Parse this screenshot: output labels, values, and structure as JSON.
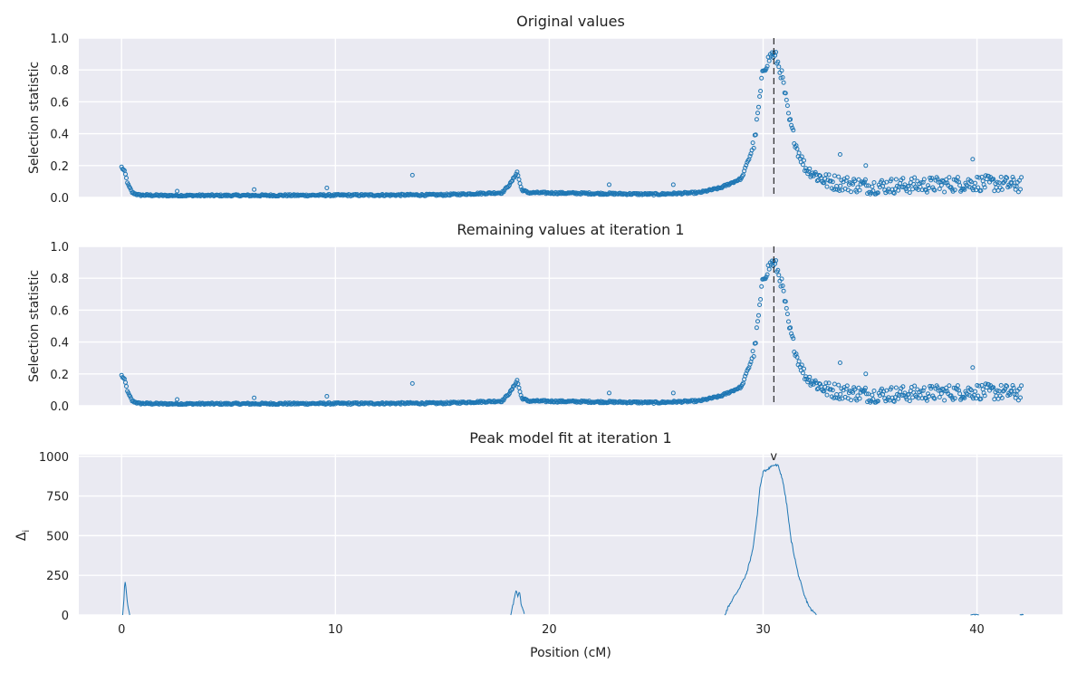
{
  "chart_data": [
    {
      "type": "scatter",
      "title": "Original values",
      "xlabel": "",
      "ylabel": "Selection statistic",
      "xlim": [
        -2,
        44
      ],
      "ylim": [
        0,
        1.0
      ],
      "yticks": [
        "0.0",
        "0.2",
        "0.4",
        "0.6",
        "0.8",
        "1.0"
      ],
      "ytick_values": [
        0,
        0.2,
        0.4,
        0.6,
        0.8,
        1.0
      ],
      "xtick_values": [
        0,
        10,
        20,
        30,
        40
      ],
      "marker_line_x": 30.5,
      "marker_line_style": "dashed",
      "color": "#1f77b4",
      "grid": true,
      "profile": [
        [
          0.0,
          0.19
        ],
        [
          0.15,
          0.16
        ],
        [
          0.3,
          0.08
        ],
        [
          0.5,
          0.03
        ],
        [
          0.8,
          0.015
        ],
        [
          2,
          0.012
        ],
        [
          5,
          0.012
        ],
        [
          10,
          0.014
        ],
        [
          15,
          0.016
        ],
        [
          17.8,
          0.03
        ],
        [
          18.2,
          0.09
        ],
        [
          18.5,
          0.16
        ],
        [
          18.7,
          0.05
        ],
        [
          19,
          0.03
        ],
        [
          22,
          0.025
        ],
        [
          25,
          0.02
        ],
        [
          27,
          0.03
        ],
        [
          28,
          0.06
        ],
        [
          29,
          0.12
        ],
        [
          29.6,
          0.35
        ],
        [
          30.0,
          0.8
        ],
        [
          30.4,
          0.9
        ],
        [
          30.6,
          0.88
        ],
        [
          30.9,
          0.75
        ],
        [
          31.2,
          0.5
        ],
        [
          31.6,
          0.3
        ],
        [
          32,
          0.18
        ],
        [
          33,
          0.1
        ],
        [
          35,
          0.07
        ],
        [
          38,
          0.08
        ],
        [
          40,
          0.09
        ],
        [
          42,
          0.08
        ]
      ],
      "outliers": [
        [
          2.6,
          0.04
        ],
        [
          6.2,
          0.05
        ],
        [
          9.6,
          0.06
        ],
        [
          13.6,
          0.14
        ],
        [
          22.8,
          0.08
        ],
        [
          25.8,
          0.08
        ],
        [
          33.6,
          0.27
        ],
        [
          34.8,
          0.2
        ],
        [
          39.8,
          0.24
        ]
      ]
    },
    {
      "type": "scatter",
      "title": "Remaining values at iteration 1",
      "xlabel": "",
      "ylabel": "Selection statistic",
      "xlim": [
        -2,
        44
      ],
      "ylim": [
        0,
        1.0
      ],
      "yticks": [
        "0.0",
        "0.2",
        "0.4",
        "0.6",
        "0.8",
        "1.0"
      ],
      "ytick_values": [
        0,
        0.2,
        0.4,
        0.6,
        0.8,
        1.0
      ],
      "xtick_values": [
        0,
        10,
        20,
        30,
        40
      ],
      "marker_line_x": 30.5,
      "marker_line_style": "dashed",
      "color": "#1f77b4",
      "grid": true,
      "profile": [
        [
          0.0,
          0.19
        ],
        [
          0.15,
          0.16
        ],
        [
          0.3,
          0.08
        ],
        [
          0.5,
          0.03
        ],
        [
          0.8,
          0.015
        ],
        [
          2,
          0.012
        ],
        [
          5,
          0.012
        ],
        [
          10,
          0.014
        ],
        [
          15,
          0.016
        ],
        [
          17.8,
          0.03
        ],
        [
          18.2,
          0.09
        ],
        [
          18.5,
          0.16
        ],
        [
          18.7,
          0.05
        ],
        [
          19,
          0.03
        ],
        [
          22,
          0.025
        ],
        [
          25,
          0.02
        ],
        [
          27,
          0.03
        ],
        [
          28,
          0.06
        ],
        [
          29,
          0.12
        ],
        [
          29.6,
          0.35
        ],
        [
          30.0,
          0.8
        ],
        [
          30.4,
          0.9
        ],
        [
          30.6,
          0.88
        ],
        [
          30.9,
          0.75
        ],
        [
          31.2,
          0.5
        ],
        [
          31.6,
          0.3
        ],
        [
          32,
          0.18
        ],
        [
          33,
          0.1
        ],
        [
          35,
          0.07
        ],
        [
          38,
          0.08
        ],
        [
          40,
          0.09
        ],
        [
          42,
          0.08
        ]
      ],
      "outliers": [
        [
          2.6,
          0.04
        ],
        [
          6.2,
          0.05
        ],
        [
          9.6,
          0.06
        ],
        [
          13.6,
          0.14
        ],
        [
          22.8,
          0.08
        ],
        [
          25.8,
          0.08
        ],
        [
          33.6,
          0.27
        ],
        [
          34.8,
          0.2
        ],
        [
          39.8,
          0.24
        ]
      ]
    },
    {
      "type": "line",
      "title": "Peak model fit at iteration 1",
      "xlabel": "Position (cM)",
      "ylabel": "Δ",
      "ylabel_sub": "i",
      "xlim": [
        -2,
        44
      ],
      "ylim": [
        0,
        1010
      ],
      "yticks": [
        "0",
        "250",
        "500",
        "750",
        "1000"
      ],
      "ytick_values": [
        0,
        250,
        500,
        750,
        1000
      ],
      "xticks": [
        "0",
        "10",
        "20",
        "30",
        "40"
      ],
      "xtick_values": [
        0,
        10,
        20,
        30,
        40
      ],
      "peak_marker": "v",
      "peak_marker_x": 30.5,
      "color": "#1f77b4",
      "grid": true,
      "segments": [
        [
          [
            0.05,
            0
          ],
          [
            0.12,
            120
          ],
          [
            0.15,
            220
          ],
          [
            0.2,
            180
          ],
          [
            0.28,
            60
          ],
          [
            0.38,
            0
          ]
        ],
        [
          [
            18.2,
            0
          ],
          [
            18.35,
            90
          ],
          [
            18.45,
            165
          ],
          [
            18.52,
            120
          ],
          [
            18.6,
            150
          ],
          [
            18.7,
            60
          ],
          [
            18.85,
            0
          ]
        ],
        [
          [
            28.2,
            0
          ],
          [
            28.4,
            60
          ],
          [
            28.8,
            150
          ],
          [
            29.2,
            250
          ],
          [
            29.5,
            400
          ],
          [
            29.7,
            600
          ],
          [
            29.85,
            800
          ],
          [
            30.0,
            900
          ],
          [
            30.3,
            930
          ],
          [
            30.5,
            945
          ],
          [
            30.7,
            940
          ],
          [
            30.9,
            860
          ],
          [
            31.1,
            700
          ],
          [
            31.3,
            480
          ],
          [
            31.6,
            280
          ],
          [
            31.9,
            130
          ],
          [
            32.2,
            40
          ],
          [
            32.5,
            0
          ]
        ],
        [
          [
            39.7,
            0
          ],
          [
            39.9,
            6
          ],
          [
            40.1,
            0
          ]
        ],
        [
          [
            42.0,
            0
          ],
          [
            42.1,
            6
          ],
          [
            42.2,
            0
          ]
        ]
      ]
    }
  ]
}
